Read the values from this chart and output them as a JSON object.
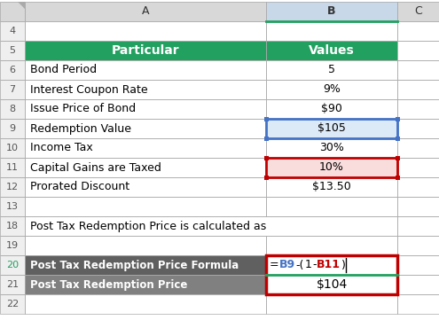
{
  "header_bg": "#22A060",
  "header_text": "#FFFFFF",
  "dark_bg": "#606060",
  "dark_bg2": "#808080",
  "dark_text": "#FFFFFF",
  "grid_color": "#C0C0C0",
  "col_header_bg": "#D8D8D8",
  "col_B_header_bg": "#C8D8E8",
  "blue_highlight": "#DCE9F7",
  "red_highlight": "#F9DCDC",
  "blue_border": "#4472C4",
  "red_border": "#C00000",
  "green_border": "#22A060",
  "row_num_bg": "#EFEFEF",
  "row_num_color": "#555555",
  "particulars": [
    "Bond Period",
    "Interest Coupon Rate",
    "Issue Price of Bond",
    "Redemption Value",
    "Income Tax",
    "Capital Gains are Taxed",
    "Prorated Discount"
  ],
  "values": [
    "5",
    "9%",
    "$90",
    "$105",
    "30%",
    "10%",
    "$13.50"
  ],
  "note_text": "Post Tax Redemption Price is calculated as",
  "formula_label": "Post Tax Redemption Price Formula",
  "formula_parts": [
    "=",
    "B9",
    "-(",
    "1",
    "-",
    "B11",
    ")"
  ],
  "formula_colors": [
    "#000000",
    "#4472C4",
    "#000000",
    "#000000",
    "#000000",
    "#C00000",
    "#000000"
  ],
  "result_label": "Post Tax Redemption Price",
  "result_value": "$104",
  "row_labels": [
    "",
    "4",
    "5",
    "6",
    "7",
    "8",
    "9",
    "10",
    "11",
    "12",
    "13",
    "18",
    "19",
    "20",
    "21",
    "22"
  ]
}
